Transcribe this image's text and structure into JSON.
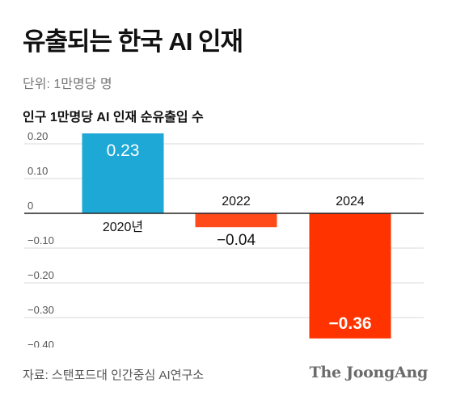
{
  "header": {
    "title": "유출되는 한국 AI 인재",
    "unit": "단위: 1만명당 명",
    "subtitle": "인구 1만명당 AI 인재 순유출입 수"
  },
  "footer": {
    "source": "자료: 스탠포드대 인간중심 AI연구소",
    "brand": "The JoongAng"
  },
  "colors": {
    "positive": "#1ea8d6",
    "negative_light": "#ff4a1a",
    "negative_strong": "#ff3300",
    "grid": "#d9d9d9",
    "axis": "#222222",
    "tick_text": "#555555"
  },
  "chart_data": {
    "type": "bar",
    "categories": [
      "2020년",
      "2022",
      "2024"
    ],
    "values": [
      0.23,
      -0.04,
      -0.36
    ],
    "value_labels": [
      "0.23",
      "−0.04",
      "−0.36"
    ],
    "ylim": [
      -0.4,
      0.23
    ],
    "yticks": [
      0.2,
      0.1,
      0,
      -0.1,
      -0.2,
      -0.3,
      -0.4
    ],
    "ytick_labels": [
      "0.20",
      "0.10",
      "0",
      "−0.10",
      "−0.20",
      "−0.30",
      "−0.40"
    ],
    "grid": true,
    "legend": "none"
  }
}
